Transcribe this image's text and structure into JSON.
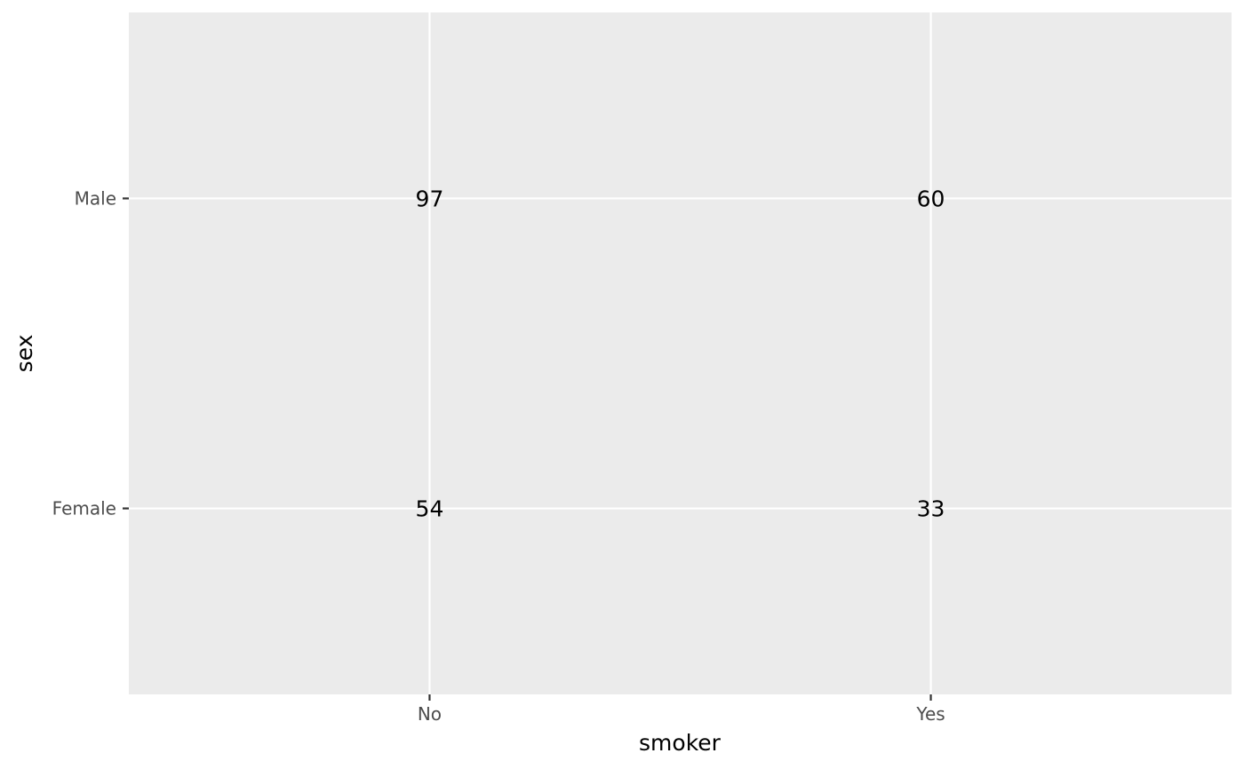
{
  "chart_data": {
    "type": "table",
    "x_categories": [
      "No",
      "Yes"
    ],
    "y_categories": [
      "Female",
      "Male"
    ],
    "cells": [
      {
        "x": "No",
        "y": "Male",
        "value": 97
      },
      {
        "x": "Yes",
        "y": "Male",
        "value": 60
      },
      {
        "x": "No",
        "y": "Female",
        "value": 54
      },
      {
        "x": "Yes",
        "y": "Female",
        "value": 33
      }
    ],
    "xlabel": "smoker",
    "ylabel": "sex",
    "grid": true,
    "legend": "none"
  },
  "colors": {
    "panel_background": "#EBEBEB",
    "grid": "#FFFFFF",
    "tick_label": "#4D4D4D",
    "text": "#000000"
  }
}
